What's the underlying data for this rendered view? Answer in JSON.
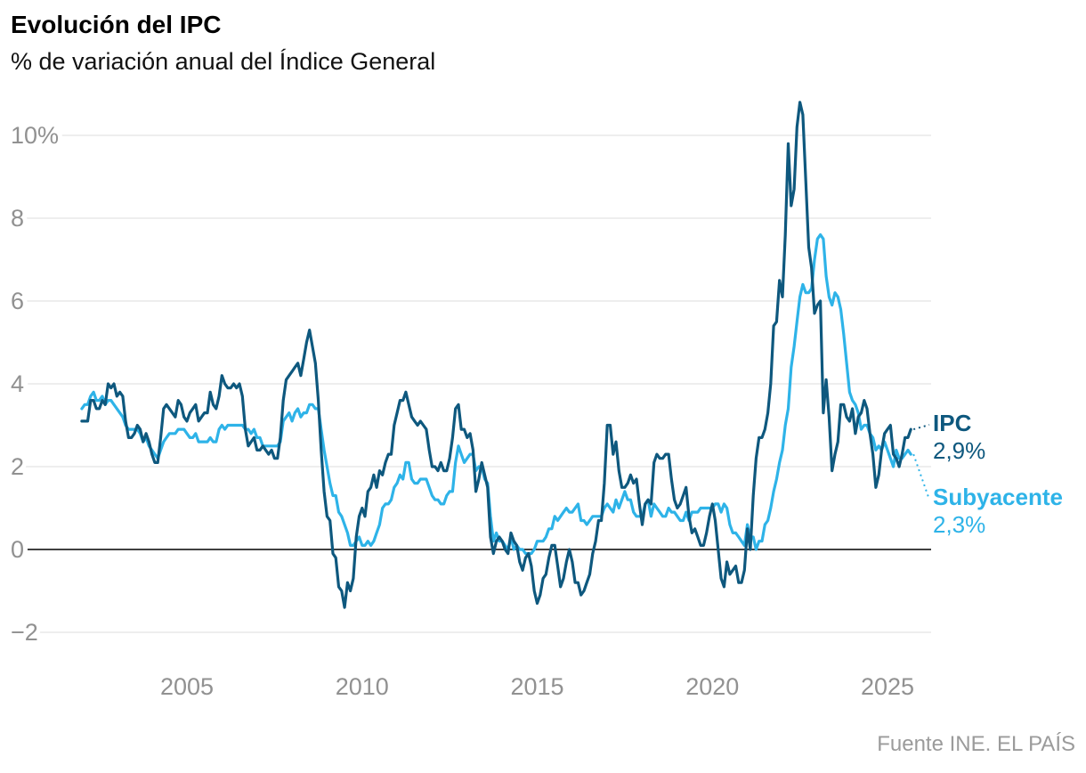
{
  "header": {
    "title": "Evolución del IPC",
    "subtitle": "% de variación anual del Índice General"
  },
  "source": "Fuente INE. EL PAÍS",
  "colors": {
    "ipc": "#0e587e",
    "subyacente": "#2eb3e8",
    "grid": "#e4e4e4",
    "zero_line": "#000000",
    "axis_text": "#919191"
  },
  "annotations": {
    "ipc_label": "IPC",
    "ipc_value": "2,9%",
    "subyacente_label": "Subyacente",
    "subyacente_value": "2,3%"
  },
  "chart_data": {
    "type": "line",
    "title": "Evolución del IPC",
    "subtitle": "% de variación anual del Índice General",
    "x_unit": "monthly",
    "x_start_year": 2002,
    "x_ticks": [
      2005,
      2010,
      2015,
      2020,
      2025
    ],
    "y_ticks": [
      "10%",
      "8",
      "6",
      "4",
      "2",
      "0",
      "−2"
    ],
    "y_tick_values": [
      10,
      8,
      6,
      4,
      2,
      0,
      -2
    ],
    "ylim": [
      -2,
      10.8
    ],
    "grid": true,
    "legend_position": "right-annotations",
    "series": [
      {
        "name": "IPC",
        "latest_label": "2,9%",
        "color": "#0e587e",
        "values_by_year": {
          "2002": [
            3.1,
            3.1,
            3.1,
            3.6,
            3.6,
            3.4,
            3.4,
            3.6,
            3.5,
            4.0,
            3.9,
            4.0
          ],
          "2003": [
            3.7,
            3.8,
            3.7,
            3.1,
            2.7,
            2.7,
            2.8,
            3.0,
            2.9,
            2.6,
            2.8,
            2.6
          ],
          "2004": [
            2.3,
            2.1,
            2.1,
            2.7,
            3.4,
            3.5,
            3.4,
            3.3,
            3.2,
            3.6,
            3.5,
            3.2
          ],
          "2005": [
            3.1,
            3.3,
            3.4,
            3.5,
            3.1,
            3.2,
            3.3,
            3.3,
            3.8,
            3.5,
            3.4,
            3.7
          ],
          "2006": [
            4.2,
            4.0,
            3.9,
            3.9,
            4.0,
            3.9,
            4.0,
            3.7,
            2.9,
            2.5,
            2.6,
            2.7
          ],
          "2007": [
            2.4,
            2.4,
            2.5,
            2.4,
            2.3,
            2.4,
            2.2,
            2.2,
            2.7,
            3.6,
            4.1,
            4.2
          ],
          "2008": [
            4.3,
            4.4,
            4.5,
            4.2,
            4.6,
            5.0,
            5.3,
            4.9,
            4.5,
            3.6,
            2.4,
            1.4
          ],
          "2009": [
            0.8,
            0.7,
            -0.1,
            -0.2,
            -0.9,
            -1.0,
            -1.4,
            -0.8,
            -1.0,
            -0.7,
            0.3,
            0.8
          ],
          "2010": [
            1.0,
            0.8,
            1.4,
            1.5,
            1.8,
            1.5,
            1.9,
            1.8,
            2.1,
            2.3,
            2.3,
            3.0
          ],
          "2011": [
            3.3,
            3.6,
            3.6,
            3.8,
            3.5,
            3.2,
            3.1,
            3.0,
            3.1,
            3.0,
            2.9,
            2.4
          ],
          "2012": [
            2.0,
            2.0,
            1.9,
            2.1,
            1.9,
            1.9,
            2.2,
            2.7,
            3.4,
            3.5,
            2.9,
            2.9
          ],
          "2013": [
            2.7,
            2.8,
            2.4,
            1.4,
            1.7,
            2.1,
            1.8,
            1.5,
            0.3,
            -0.1,
            0.2,
            0.3
          ],
          "2014": [
            0.2,
            0.0,
            -0.1,
            0.4,
            0.2,
            0.1,
            -0.3,
            -0.5,
            -0.2,
            -0.1,
            -0.4,
            -1.0
          ],
          "2015": [
            -1.3,
            -1.1,
            -0.7,
            -0.6,
            -0.2,
            0.1,
            0.1,
            -0.4,
            -0.9,
            -0.7,
            -0.3,
            0.0
          ],
          "2016": [
            -0.3,
            -0.8,
            -0.8,
            -1.1,
            -1.0,
            -0.8,
            -0.6,
            -0.1,
            0.2,
            0.7,
            0.7,
            1.6
          ],
          "2017": [
            3.0,
            3.0,
            2.3,
            2.6,
            1.9,
            1.5,
            1.5,
            1.6,
            1.8,
            1.6,
            1.7,
            1.1
          ],
          "2018": [
            0.6,
            1.1,
            1.2,
            1.1,
            2.1,
            2.3,
            2.2,
            2.2,
            2.3,
            2.3,
            1.7,
            1.2
          ],
          "2019": [
            1.0,
            1.1,
            1.3,
            1.5,
            0.8,
            0.4,
            0.5,
            0.3,
            0.1,
            0.1,
            0.4,
            0.8
          ],
          "2020": [
            1.1,
            0.7,
            0.0,
            -0.7,
            -0.9,
            -0.3,
            -0.6,
            -0.5,
            -0.4,
            -0.8,
            -0.8,
            -0.5
          ],
          "2021": [
            0.5,
            0.0,
            1.3,
            2.2,
            2.7,
            2.7,
            2.9,
            3.3,
            4.0,
            5.4,
            5.5,
            6.5
          ],
          "2022": [
            6.1,
            7.6,
            9.8,
            8.3,
            8.7,
            10.2,
            10.8,
            10.5,
            8.9,
            7.3,
            6.8,
            5.7
          ],
          "2023": [
            5.9,
            6.0,
            3.3,
            4.1,
            3.2,
            1.9,
            2.3,
            2.6,
            3.5,
            3.5,
            3.2,
            3.1
          ],
          "2024": [
            3.4,
            2.8,
            3.2,
            3.3,
            3.6,
            3.4,
            2.8,
            2.3,
            1.5,
            1.8,
            2.4,
            2.8
          ],
          "2025": [
            2.9,
            3.0,
            2.3,
            2.2,
            2.0,
            2.3,
            2.7,
            2.7,
            2.9
          ]
        }
      },
      {
        "name": "Subyacente",
        "latest_label": "2,3%",
        "color": "#2eb3e8",
        "values_by_year": {
          "2002": [
            3.4,
            3.5,
            3.5,
            3.7,
            3.8,
            3.6,
            3.6,
            3.7,
            3.5,
            3.6,
            3.6,
            3.5
          ],
          "2003": [
            3.4,
            3.3,
            3.2,
            3.0,
            2.9,
            2.9,
            2.9,
            2.9,
            2.8,
            2.6,
            2.7,
            2.5
          ],
          "2004": [
            2.4,
            2.3,
            2.2,
            2.4,
            2.6,
            2.7,
            2.8,
            2.8,
            2.8,
            2.9,
            2.9,
            2.9
          ],
          "2005": [
            2.8,
            2.7,
            2.7,
            2.8,
            2.6,
            2.6,
            2.6,
            2.6,
            2.7,
            2.6,
            2.6,
            2.9
          ],
          "2006": [
            3.0,
            2.9,
            3.0,
            3.0,
            3.0,
            3.0,
            3.0,
            3.0,
            2.9,
            2.9,
            2.8,
            2.9
          ],
          "2007": [
            2.7,
            2.7,
            2.5,
            2.5,
            2.5,
            2.5,
            2.5,
            2.5,
            2.6,
            3.1,
            3.2,
            3.3
          ],
          "2008": [
            3.1,
            3.3,
            3.4,
            3.2,
            3.3,
            3.3,
            3.5,
            3.5,
            3.4,
            3.4,
            2.9,
            2.4
          ],
          "2009": [
            2.0,
            1.6,
            1.3,
            1.3,
            0.9,
            0.8,
            0.6,
            0.4,
            0.1,
            0.1,
            0.2,
            0.3
          ],
          "2010": [
            0.1,
            0.1,
            0.2,
            0.1,
            0.2,
            0.4,
            0.6,
            1.0,
            1.1,
            1.1,
            1.2,
            1.5
          ],
          "2011": [
            1.6,
            1.8,
            1.7,
            2.1,
            2.1,
            1.7,
            1.6,
            1.6,
            1.7,
            1.7,
            1.7,
            1.5
          ],
          "2012": [
            1.3,
            1.2,
            1.2,
            1.1,
            1.1,
            1.3,
            1.4,
            1.4,
            2.1,
            2.5,
            2.3,
            2.1
          ],
          "2013": [
            2.2,
            2.3,
            2.3,
            1.9,
            2.0,
            2.0,
            1.7,
            1.6,
            0.8,
            0.2,
            0.4,
            0.2
          ],
          "2014": [
            0.2,
            0.1,
            0.0,
            0.3,
            0.0,
            0.1,
            0.0,
            0.0,
            -0.1,
            -0.1,
            -0.1,
            0.0
          ],
          "2015": [
            0.2,
            0.2,
            0.2,
            0.3,
            0.5,
            0.5,
            0.8,
            0.7,
            0.8,
            0.9,
            1.0,
            0.9
          ],
          "2016": [
            0.9,
            1.0,
            1.1,
            0.7,
            0.7,
            0.6,
            0.7,
            0.8,
            0.8,
            0.8,
            0.8,
            1.0
          ],
          "2017": [
            1.1,
            1.0,
            0.9,
            1.2,
            1.0,
            1.2,
            1.4,
            1.2,
            1.2,
            0.9,
            0.8,
            0.8
          ],
          "2018": [
            0.8,
            1.1,
            1.2,
            0.8,
            1.1,
            1.0,
            0.9,
            0.8,
            0.8,
            1.0,
            0.9,
            0.9
          ],
          "2019": [
            0.8,
            0.7,
            0.7,
            0.9,
            0.7,
            0.9,
            0.9,
            0.9,
            1.0,
            1.0,
            1.0,
            1.0
          ],
          "2020": [
            1.0,
            1.1,
            1.1,
            0.9,
            1.1,
            1.0,
            0.6,
            0.4,
            0.4,
            0.3,
            0.2,
            0.1
          ],
          "2021": [
            0.6,
            0.3,
            0.3,
            0.0,
            0.2,
            0.2,
            0.6,
            0.7,
            1.0,
            1.4,
            1.7,
            2.1
          ],
          "2022": [
            2.4,
            3.0,
            3.4,
            4.4,
            4.9,
            5.5,
            6.1,
            6.4,
            6.2,
            6.2,
            6.3,
            7.0
          ],
          "2023": [
            7.5,
            7.6,
            7.5,
            6.6,
            6.1,
            5.9,
            6.2,
            6.1,
            5.8,
            5.2,
            4.5,
            3.8
          ],
          "2024": [
            3.6,
            3.5,
            3.3,
            2.9,
            3.0,
            3.0,
            2.8,
            2.7,
            2.4,
            2.5,
            2.4,
            2.6
          ],
          "2025": [
            2.4,
            2.2,
            2.0,
            2.4,
            2.2,
            2.2,
            2.3,
            2.4,
            2.3
          ]
        }
      }
    ]
  }
}
